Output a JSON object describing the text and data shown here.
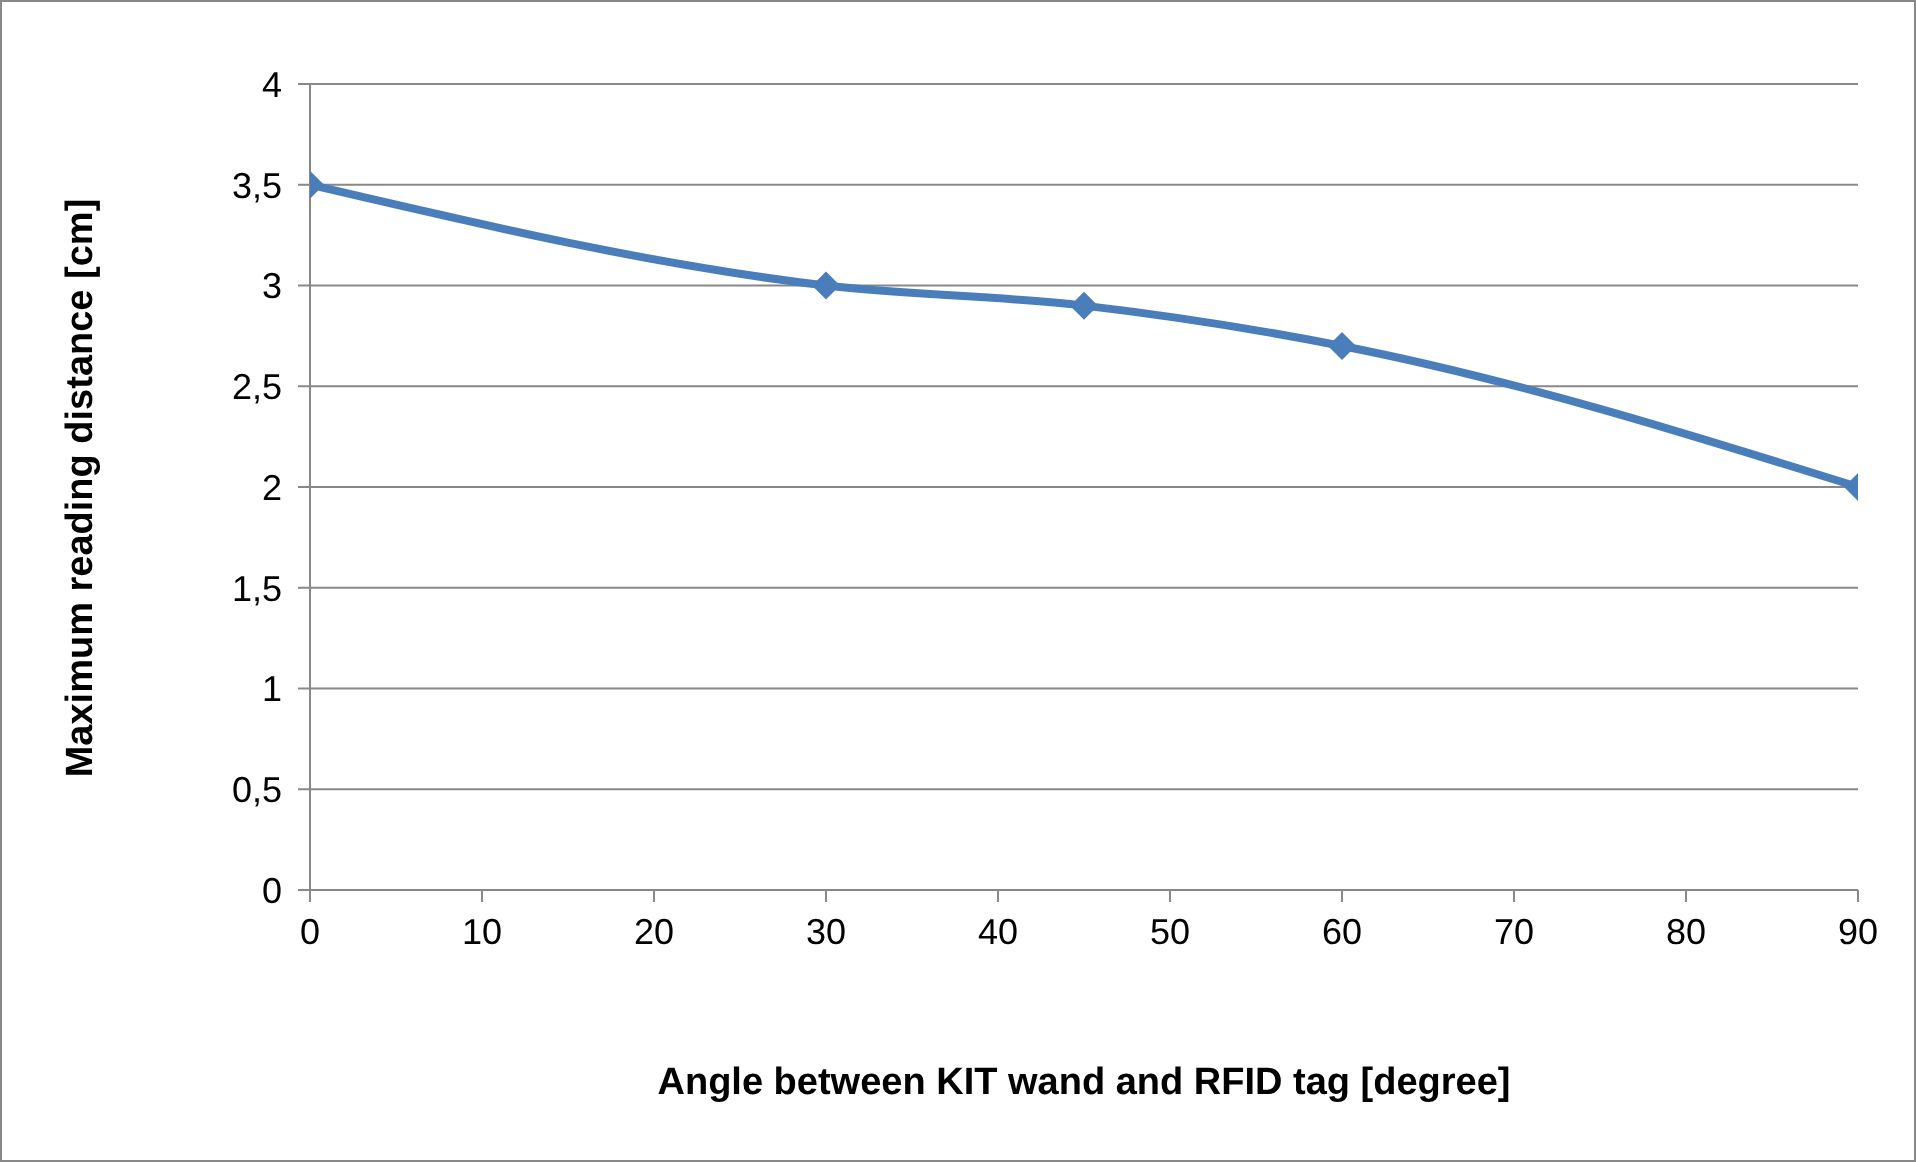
{
  "chart_data": {
    "type": "line",
    "xlabel": "Angle between KIT wand and RFID tag [degree]",
    "ylabel": "Maximum reading distance [cm]",
    "x": [
      0,
      30,
      45,
      60,
      90
    ],
    "series": [
      {
        "color": "#4a7ebb",
        "values": [
          3.5,
          3.0,
          2.9,
          2.7,
          2.0
        ]
      }
    ],
    "xlim": [
      0,
      90
    ],
    "xticks": [
      0,
      10,
      20,
      30,
      40,
      50,
      60,
      70,
      80,
      90
    ],
    "ylim": [
      0,
      4
    ],
    "yticks": [
      0,
      {
        "value": 0.5,
        "label": "0,5"
      },
      1,
      {
        "value": 1.5,
        "label": "1,5"
      },
      2,
      {
        "value": 2.5,
        "label": "2,5"
      },
      3,
      {
        "value": 3.5,
        "label": "3,5"
      },
      4
    ],
    "grid": "y",
    "marker": "diamond",
    "line_style": "solid",
    "legend": false
  }
}
